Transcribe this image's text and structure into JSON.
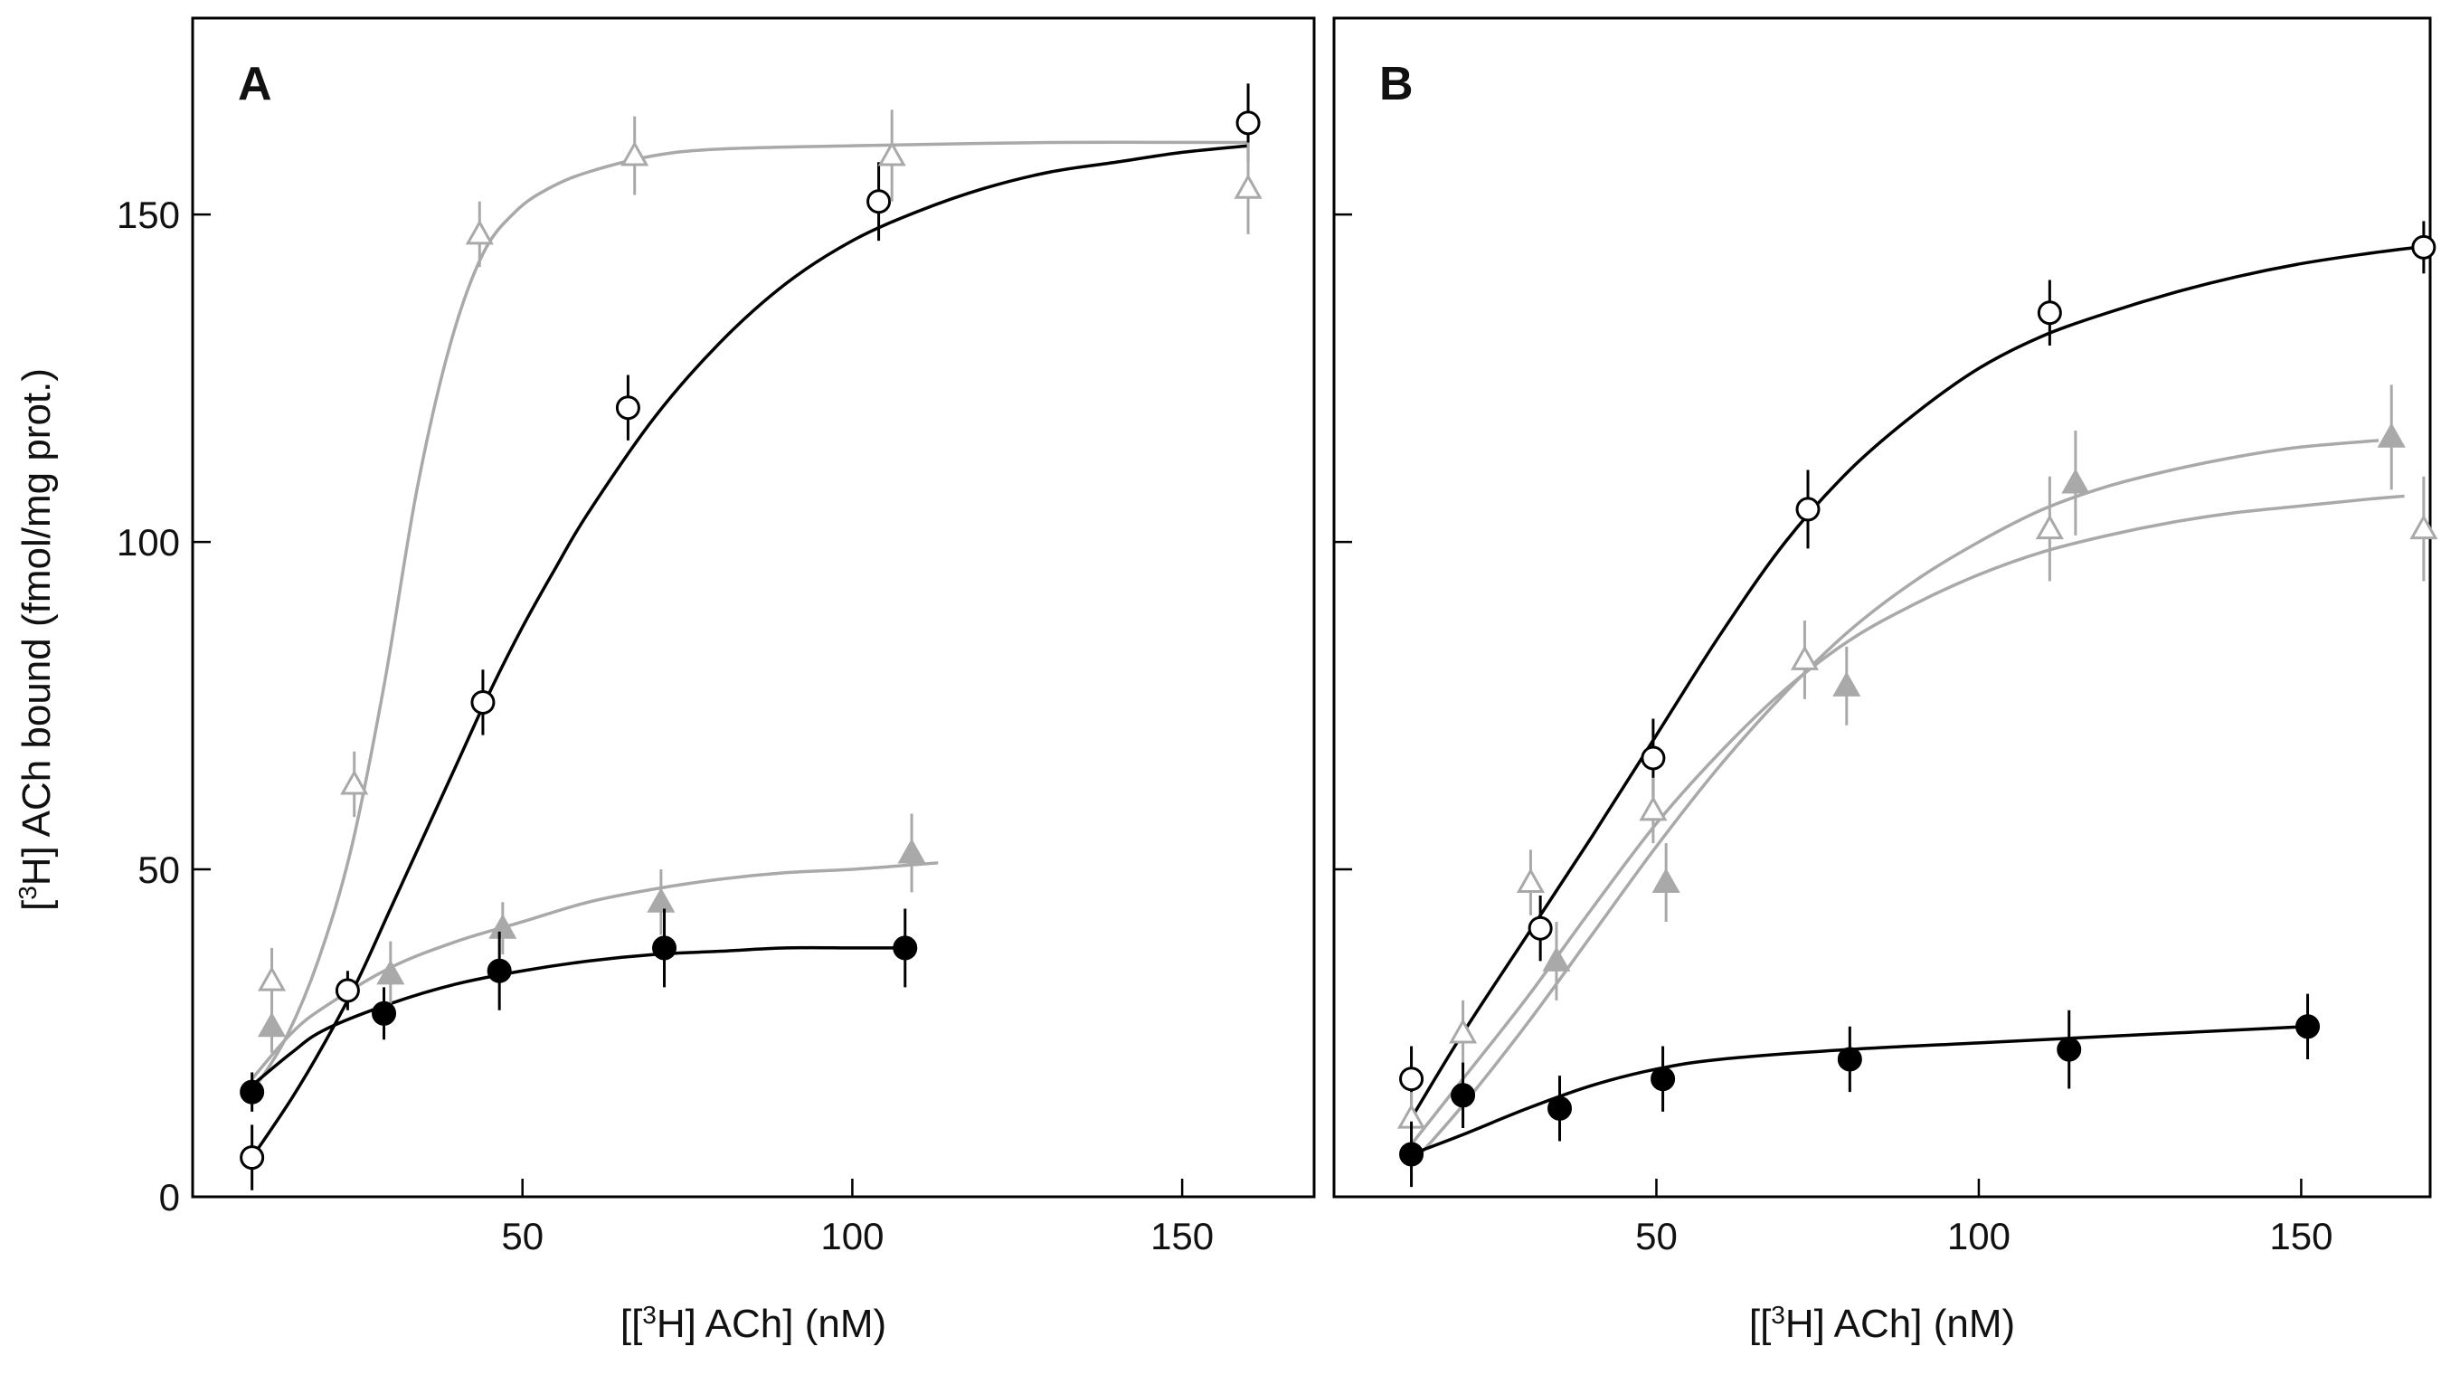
{
  "chart_data": [
    {
      "type": "scatter",
      "panel_label": "A",
      "xlabel": {
        "prefix": "[[",
        "sup": "3",
        "suffix": "H] ACh] (nM)"
      },
      "ylabel": {
        "prefix": "[",
        "sup": "3",
        "suffix": "H] ACh bound (fmol/mg prot.)"
      },
      "xlim": [
        0,
        170
      ],
      "ylim": [
        0,
        180
      ],
      "xticks": [
        50,
        100,
        150
      ],
      "yticks": [
        0,
        50,
        100,
        150
      ],
      "xticklabels": [
        "50",
        "100",
        "150"
      ],
      "yticklabels": [
        "0",
        "50",
        "100",
        "150"
      ],
      "series": [
        {
          "name": "open circles",
          "marker": "open-circle",
          "color": "#000000",
          "x": [
            9,
            23.5,
            44,
            66,
            104,
            160
          ],
          "y": [
            6,
            31.5,
            75.5,
            120.5,
            152,
            164
          ],
          "err": [
            5,
            3,
            5,
            5,
            6,
            6
          ],
          "fit_x": [
            9,
            15,
            20,
            25,
            30,
            35,
            40,
            45,
            50,
            55,
            60,
            70,
            80,
            90,
            100,
            110,
            120,
            130,
            140,
            150,
            160
          ],
          "fit_y": [
            6,
            15,
            23.5,
            33,
            44,
            55,
            66,
            77,
            87,
            96,
            104.5,
            119,
            130.5,
            139.5,
            146,
            150.5,
            154,
            156.5,
            158,
            159.5,
            160.5
          ]
        },
        {
          "name": "open triangles",
          "marker": "open-triangle",
          "color": "#a9a9a9",
          "x": [
            12,
            24.5,
            43.5,
            67,
            106,
            160
          ],
          "y": [
            33,
            63,
            147,
            159,
            159,
            154
          ],
          "err": [
            5,
            5,
            5,
            6,
            7,
            7
          ],
          "fit_x": [
            9,
            14,
            19,
            24,
            29,
            34,
            39,
            44,
            49,
            54,
            60,
            70,
            80,
            100,
            130,
            160
          ],
          "fit_y": [
            16,
            24,
            36,
            53,
            78,
            108,
            130,
            144,
            150.5,
            154,
            156.5,
            159,
            160,
            160.5,
            161,
            161
          ]
        },
        {
          "name": "filled triangles",
          "marker": "filled-triangle",
          "color": "#a9a9a9",
          "x": [
            12,
            30,
            47,
            71,
            109
          ],
          "y": [
            26,
            34,
            41,
            45,
            52.5
          ],
          "err": [
            4,
            5,
            4,
            5,
            6
          ],
          "fit_x": [
            9,
            15,
            20,
            30,
            40,
            50,
            60,
            70,
            80,
            90,
            100,
            113
          ],
          "fit_y": [
            18,
            25,
            29,
            35,
            39,
            42,
            45,
            47,
            48.5,
            49.5,
            50,
            51
          ]
        },
        {
          "name": "filled circles",
          "marker": "filled-circle",
          "color": "#000000",
          "x": [
            9,
            29,
            46.5,
            71.5,
            108
          ],
          "y": [
            16,
            28,
            34.5,
            38,
            38
          ],
          "err": [
            3,
            4,
            6,
            6,
            6
          ],
          "fit_x": [
            9,
            15,
            20,
            30,
            40,
            50,
            60,
            70,
            80,
            90,
            100,
            108
          ],
          "fit_y": [
            17,
            22,
            25.5,
            29.5,
            32.5,
            34.5,
            36,
            37,
            37.5,
            38,
            38,
            38
          ]
        }
      ]
    },
    {
      "type": "scatter",
      "panel_label": "B",
      "xlabel": {
        "prefix": "[[",
        "sup": "3",
        "suffix": "H] ACh] (nM)"
      },
      "xlim": [
        0,
        170
      ],
      "ylim": [
        0,
        180
      ],
      "xticks": [
        50,
        100,
        150
      ],
      "yticks": [
        0,
        50,
        100,
        150
      ],
      "xticklabels": [
        "50",
        "100",
        "150"
      ],
      "series": [
        {
          "name": "open circles",
          "marker": "open-circle",
          "color": "#000000",
          "x": [
            12,
            32,
            49.5,
            73.5,
            111,
            169
          ],
          "y": [
            18,
            41,
            67,
            105,
            135,
            145
          ],
          "err": [
            5,
            5,
            6,
            6,
            5,
            4
          ],
          "fit_x": [
            12,
            20,
            30,
            40,
            50,
            60,
            70,
            80,
            90,
            100,
            110,
            120,
            130,
            140,
            150,
            160,
            168
          ],
          "fit_y": [
            12,
            25,
            40,
            55,
            70.5,
            86,
            100,
            111,
            119.5,
            126.5,
            131.5,
            135,
            138,
            140.5,
            142.5,
            144,
            145
          ]
        },
        {
          "name": "open triangles",
          "marker": "open-triangle",
          "color": "#a9a9a9",
          "x": [
            12,
            20,
            30.5,
            49.5,
            73,
            111,
            169
          ],
          "y": [
            12,
            25,
            48,
            59,
            82,
            102,
            102
          ],
          "err": [
            4,
            5,
            5,
            5,
            6,
            8,
            8
          ],
          "fit_x": [
            12,
            20,
            30,
            40,
            50,
            60,
            70,
            80,
            90,
            100,
            110,
            120,
            130,
            140,
            150,
            160,
            166
          ],
          "fit_y": [
            8,
            18,
            30.5,
            44,
            57,
            68,
            77.5,
            85,
            90.5,
            95,
            98.5,
            101,
            103,
            104.5,
            105.5,
            106.5,
            107
          ]
        },
        {
          "name": "filled triangles",
          "marker": "filled-triangle",
          "color": "#a9a9a9",
          "x": [
            34.5,
            51.5,
            79.5,
            115,
            164
          ],
          "y": [
            36,
            48,
            78,
            109,
            116
          ],
          "err": [
            6,
            6,
            6,
            8,
            8
          ],
          "fit_x": [
            12,
            20,
            30,
            40,
            50,
            60,
            70,
            80,
            90,
            100,
            110,
            120,
            130,
            140,
            150,
            162
          ],
          "fit_y": [
            5,
            14,
            26.5,
            40,
            53.5,
            66,
            77,
            86.5,
            94,
            100,
            105,
            108.5,
            111,
            113,
            114.5,
            115.5
          ]
        },
        {
          "name": "filled circles",
          "marker": "filled-circle",
          "color": "#000000",
          "x": [
            12,
            20,
            35,
            51,
            80,
            114,
            151
          ],
          "y": [
            6.5,
            15.5,
            13.5,
            18,
            21,
            22.5,
            26
          ],
          "err": [
            5,
            5,
            5,
            5,
            5,
            6,
            5
          ],
          "fit_x": [
            12,
            20,
            30,
            40,
            50,
            60,
            80,
            100,
            120,
            151
          ],
          "fit_y": [
            6.5,
            9.5,
            13.5,
            17,
            19.5,
            21,
            22.5,
            23.5,
            24.5,
            26
          ]
        }
      ]
    }
  ]
}
